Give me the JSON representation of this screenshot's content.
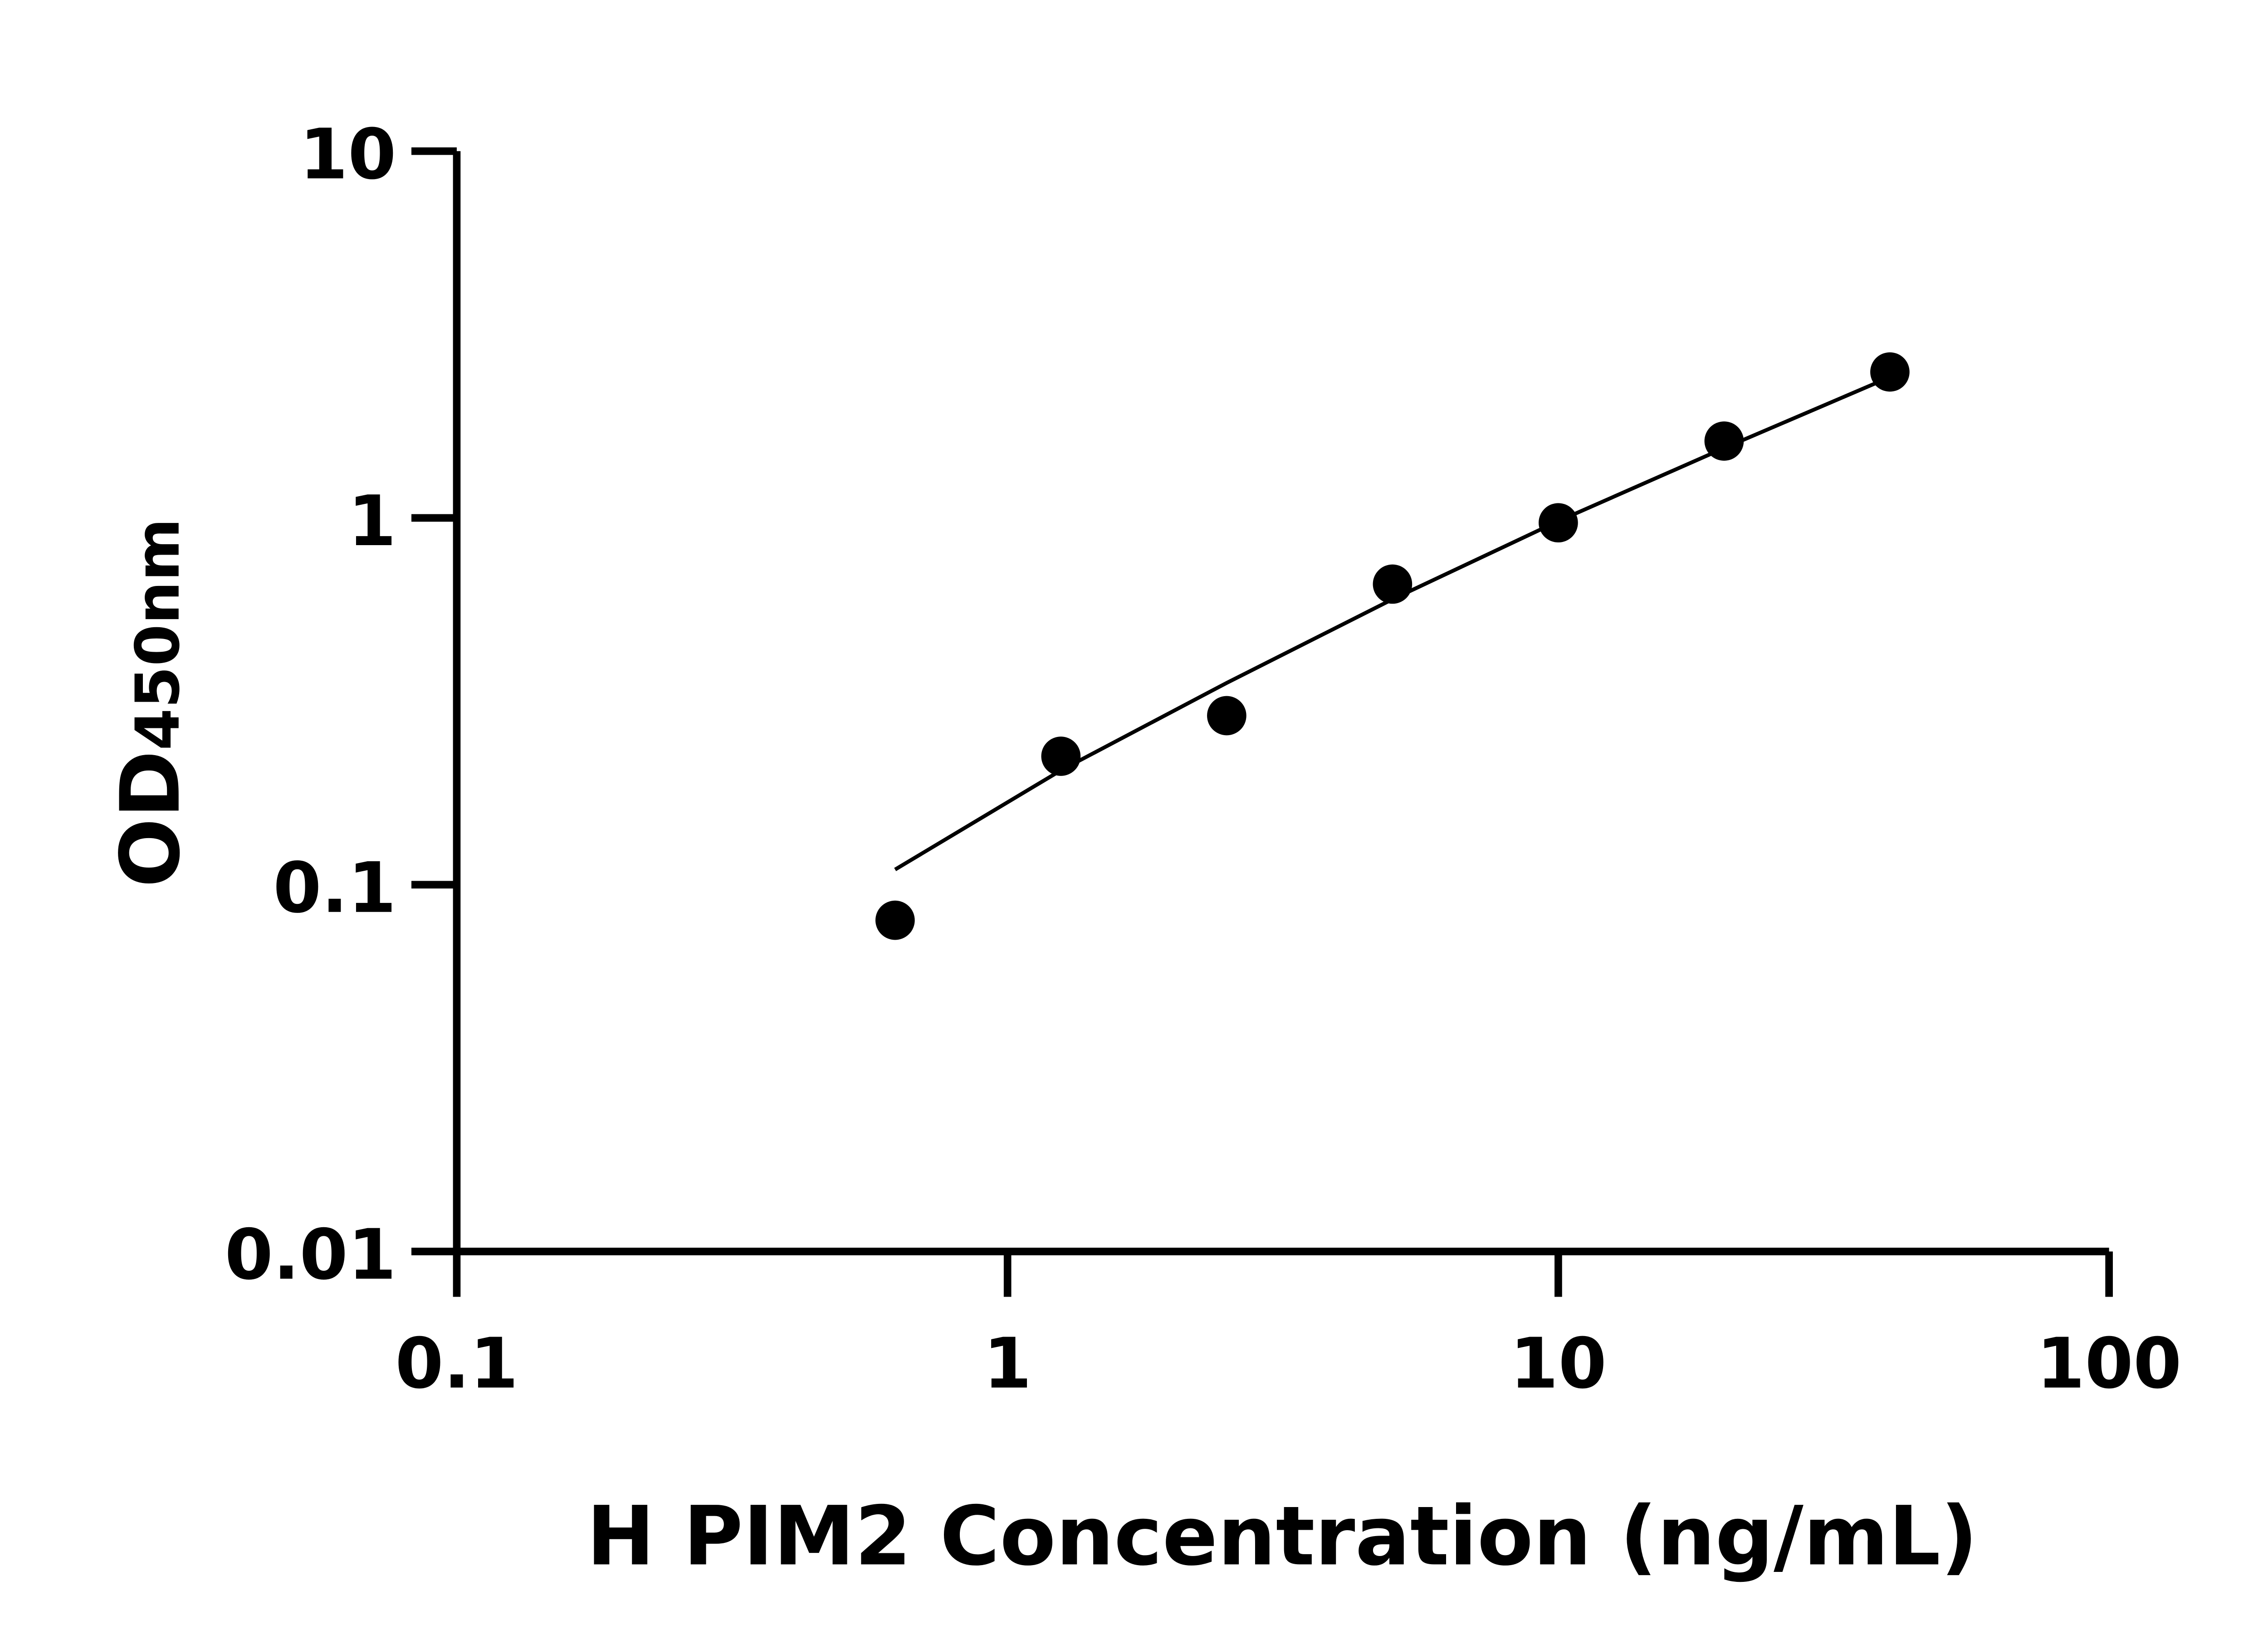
{
  "chart_data": {
    "type": "scatter",
    "xlabel": "H PIM2 Concentration (ng/mL)",
    "ylabel_main": "OD",
    "ylabel_sub": "450nm",
    "x_scale": "log",
    "y_scale": "log",
    "xlim": [
      0.1,
      100
    ],
    "ylim": [
      0.01,
      10
    ],
    "x_ticks": [
      "0.1",
      "1",
      "10",
      "100"
    ],
    "y_ticks": [
      "0.01",
      "0.1",
      "1",
      "10"
    ],
    "grid": false,
    "points": [
      {
        "x": 0.625,
        "y": 0.08
      },
      {
        "x": 1.25,
        "y": 0.224
      },
      {
        "x": 2.5,
        "y": 0.289
      },
      {
        "x": 5,
        "y": 0.66
      },
      {
        "x": 10,
        "y": 0.97
      },
      {
        "x": 20,
        "y": 1.62
      },
      {
        "x": 40,
        "y": 2.5
      }
    ],
    "fit_line": [
      {
        "x": 0.625,
        "y": 0.11
      },
      {
        "x": 1.25,
        "y": 0.205
      },
      {
        "x": 2.5,
        "y": 0.355
      },
      {
        "x": 5,
        "y": 0.6
      },
      {
        "x": 10,
        "y": 0.98
      },
      {
        "x": 20,
        "y": 1.55
      },
      {
        "x": 40,
        "y": 2.42
      }
    ],
    "colors": {
      "points": "#000000",
      "line": "#000000",
      "axes": "#000000"
    }
  }
}
